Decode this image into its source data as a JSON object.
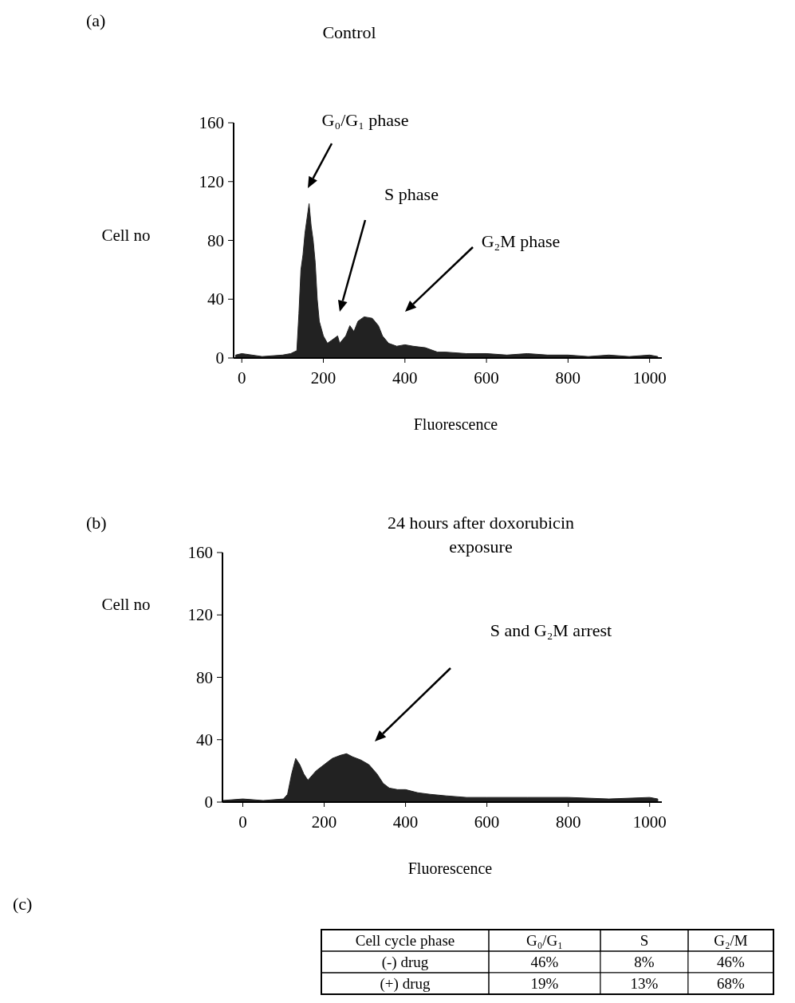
{
  "chart_data": [
    {
      "type": "area",
      "title": "Control",
      "xlabel": "Fluorescence",
      "ylabel": "Cell no",
      "annotations": [
        "(a)",
        "G₀/G₁ phase",
        "S phase",
        "G₂M phase"
      ],
      "x": [
        -15,
        0,
        50,
        100,
        120,
        135,
        140,
        145,
        150,
        155,
        160,
        165,
        170,
        175,
        180,
        185,
        190,
        200,
        210,
        220,
        235,
        240,
        255,
        265,
        275,
        285,
        300,
        320,
        335,
        345,
        360,
        380,
        400,
        420,
        450,
        480,
        500,
        550,
        600,
        650,
        700,
        750,
        800,
        850,
        900,
        950,
        1000,
        1020
      ],
      "values": [
        2,
        3,
        1,
        2,
        3,
        5,
        30,
        60,
        70,
        85,
        95,
        105,
        90,
        80,
        65,
        40,
        25,
        15,
        10,
        12,
        15,
        10,
        15,
        22,
        18,
        25,
        28,
        27,
        22,
        15,
        10,
        8,
        9,
        8,
        7,
        4,
        4,
        3,
        3,
        2,
        3,
        2,
        2,
        1,
        2,
        1,
        2,
        1
      ],
      "color": "#222222",
      "xlim": [
        -20,
        1030
      ],
      "ylim": [
        0,
        160
      ],
      "xticks": [
        0,
        200,
        400,
        600,
        800,
        1000
      ],
      "yticks": [
        0,
        40,
        80,
        120,
        160
      ],
      "grid": false
    },
    {
      "type": "area",
      "title": "24 hours after doxorubicin exposure",
      "xlabel": "Fluorescence",
      "ylabel": "Cell no",
      "annotations": [
        "(b)",
        "S and G₂M arrest"
      ],
      "x": [
        -50,
        0,
        50,
        100,
        110,
        120,
        130,
        140,
        150,
        160,
        170,
        180,
        200,
        220,
        240,
        255,
        270,
        290,
        310,
        330,
        345,
        360,
        380,
        400,
        430,
        460,
        500,
        550,
        600,
        700,
        800,
        900,
        1000,
        1020
      ],
      "values": [
        1,
        2,
        1,
        2,
        5,
        18,
        28,
        24,
        18,
        14,
        17,
        20,
        24,
        28,
        30,
        31,
        29,
        27,
        24,
        18,
        12,
        9,
        8,
        8,
        6,
        5,
        4,
        3,
        3,
        3,
        3,
        2,
        3,
        2
      ],
      "color": "#222222",
      "xlim": [
        -50,
        1030
      ],
      "ylim": [
        0,
        160
      ],
      "xticks": [
        0,
        200,
        400,
        600,
        800,
        1000
      ],
      "yticks": [
        0,
        40,
        80,
        120,
        160
      ],
      "grid": false
    },
    {
      "type": "other",
      "ylabel": "Cell cycle phase",
      "annotations": [
        "(c)"
      ],
      "categories": [
        "G₀/G₁",
        "S",
        "G₂/M"
      ],
      "y_categories": [
        "(-) drug",
        "(+) drug"
      ],
      "cell_labels": [
        [
          "46%",
          "8%",
          "46%"
        ],
        [
          "19%",
          "13%",
          "68%"
        ]
      ]
    }
  ]
}
